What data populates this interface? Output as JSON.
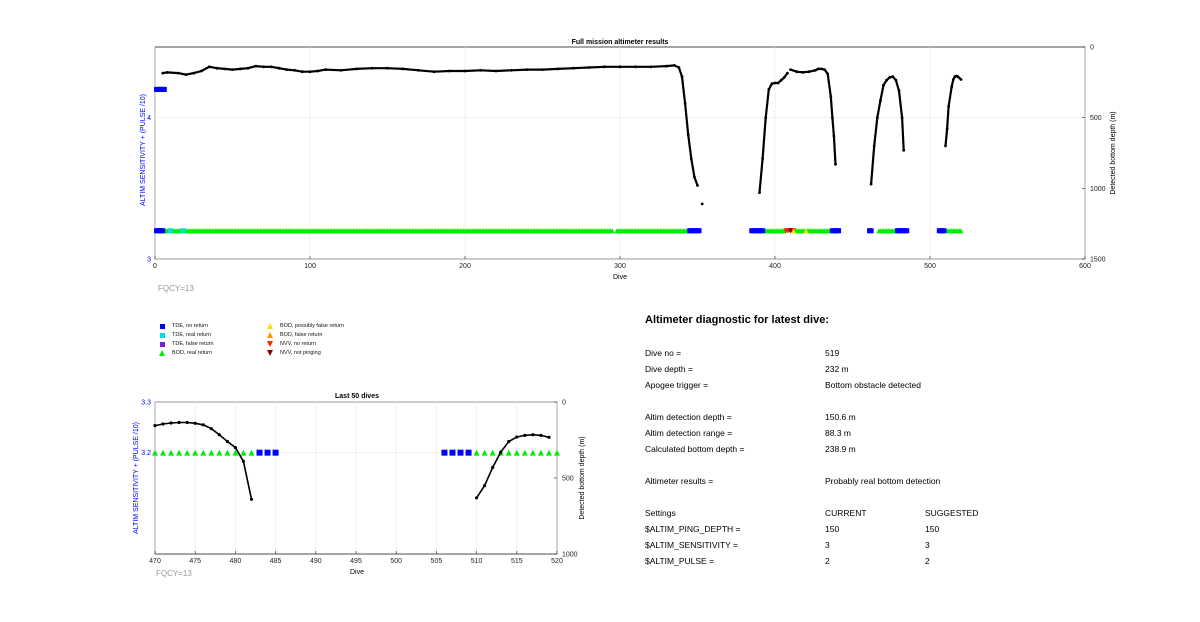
{
  "chart_data": [
    {
      "type": "scatter",
      "title": "Full mission altimeter results",
      "xlabel": "Dive",
      "ylabel": "ALTIM SENSITIVITY + (PULSE /10)",
      "y2label": "Detected bottom depth (m)",
      "xlim": [
        0,
        600
      ],
      "ylim": [
        3,
        4.5
      ],
      "y2lim": [
        0,
        1500
      ],
      "xticks": [
        "0",
        "100",
        "200",
        "300",
        "400",
        "500",
        "600"
      ],
      "yticks": [
        "3",
        "4"
      ],
      "y2ticks": [
        "0",
        "500",
        "1000",
        "1500"
      ],
      "grid": true,
      "annotation": "FQCY=13",
      "series": [
        {
          "name": "Detected bottom depth",
          "axis": "right",
          "segments": [
            [
              [
                5,
                185
              ],
              [
                8,
                180
              ],
              [
                15,
                185
              ],
              [
                20,
                195
              ],
              [
                25,
                185
              ],
              [
                30,
                170
              ],
              [
                35,
                140
              ],
              [
                40,
                150
              ],
              [
                45,
                155
              ],
              [
                50,
                160
              ],
              [
                55,
                155
              ],
              [
                60,
                150
              ],
              [
                65,
                135
              ],
              [
                70,
                140
              ],
              [
                75,
                140
              ],
              [
                80,
                150
              ],
              [
                85,
                160
              ],
              [
                90,
                165
              ],
              [
                95,
                175
              ],
              [
                100,
                175
              ],
              [
                105,
                170
              ],
              [
                110,
                160
              ],
              [
                120,
                165
              ],
              [
                130,
                155
              ],
              [
                140,
                150
              ],
              [
                150,
                150
              ],
              [
                160,
                155
              ],
              [
                170,
                165
              ],
              [
                180,
                175
              ],
              [
                190,
                170
              ],
              [
                200,
                170
              ],
              [
                210,
                165
              ],
              [
                220,
                170
              ],
              [
                230,
                165
              ],
              [
                240,
                160
              ],
              [
                250,
                160
              ],
              [
                260,
                155
              ],
              [
                270,
                150
              ],
              [
                280,
                145
              ],
              [
                290,
                140
              ],
              [
                300,
                140
              ],
              [
                310,
                140
              ],
              [
                320,
                140
              ],
              [
                330,
                135
              ],
              [
                335,
                130
              ],
              [
                338,
                145
              ],
              [
                340,
                210
              ],
              [
                342,
                400
              ],
              [
                344,
                620
              ],
              [
                346,
                790
              ],
              [
                348,
                920
              ],
              [
                350,
                980
              ]
            ],
            [
              [
                353,
                1110
              ]
            ],
            [
              [
                390,
                1030
              ],
              [
                392,
                790
              ],
              [
                394,
                500
              ],
              [
                396,
                300
              ],
              [
                398,
                260
              ],
              [
                400,
                255
              ],
              [
                402,
                255
              ],
              [
                404,
                235
              ],
              [
                406,
                215
              ],
              [
                408,
                185
              ]
            ],
            [
              [
                410,
                160
              ],
              [
                414,
                175
              ],
              [
                418,
                180
              ],
              [
                422,
                175
              ],
              [
                426,
                165
              ],
              [
                428,
                155
              ],
              [
                430,
                155
              ],
              [
                432,
                160
              ],
              [
                434,
                190
              ],
              [
                436,
                350
              ],
              [
                437,
                500
              ],
              [
                438,
                630
              ],
              [
                439,
                830
              ]
            ],
            [
              [
                462,
                970
              ],
              [
                464,
                700
              ],
              [
                466,
                500
              ],
              [
                468,
                380
              ],
              [
                470,
                270
              ],
              [
                472,
                235
              ],
              [
                474,
                215
              ],
              [
                476,
                210
              ],
              [
                478,
                235
              ],
              [
                480,
                310
              ],
              [
                482,
                500
              ],
              [
                483,
                730
              ]
            ],
            [
              [
                510,
                700
              ],
              [
                511,
                580
              ],
              [
                512,
                420
              ],
              [
                514,
                280
              ],
              [
                515,
                230
              ],
              [
                516,
                210
              ],
              [
                517,
                205
              ],
              [
                518,
                210
              ],
              [
                520,
                230
              ]
            ]
          ]
        },
        {
          "name": "BOD, real return",
          "axis": "left",
          "y": 3.2,
          "dives": [
            [
              6,
              8
            ],
            [
              11,
              17
            ],
            [
              20,
              295
            ],
            [
              298,
              344
            ],
            [
              394,
              406
            ],
            [
              413,
              436
            ],
            [
              467,
              478
            ],
            [
              511,
              520
            ]
          ]
        },
        {
          "name": "TDE, no return",
          "axis": "left",
          "y": 3.2,
          "dives": [
            1,
            2,
            3,
            4,
            5,
            345,
            346,
            347,
            348,
            349,
            350,
            351,
            385,
            386,
            387,
            388,
            389,
            390,
            391,
            392,
            437,
            438,
            439,
            440,
            441,
            461,
            462,
            479,
            480,
            481,
            482,
            483,
            484,
            485,
            506,
            507,
            508,
            509
          ]
        },
        {
          "name": "TDE, no return (offset)",
          "axis": "left",
          "y": 4.2,
          "dives": [
            1,
            2,
            3,
            4,
            5,
            6
          ]
        },
        {
          "name": "TDE, real return",
          "axis": "left",
          "y": 3.2,
          "dives": [
            10,
            18
          ]
        },
        {
          "name": "NVV, no return",
          "axis": "left",
          "y": 3.2,
          "dives": [
            407,
            408,
            409,
            410,
            411,
            412
          ]
        },
        {
          "name": "BOD, possibly false return",
          "axis": "left",
          "y": 3.2,
          "dives": [
            412,
            420
          ]
        },
        {
          "name": "NVV, not pinging",
          "axis": "left",
          "y": 3.2,
          "dives": [
            410
          ]
        }
      ]
    },
    {
      "type": "scatter",
      "title": "Last 50 dives",
      "xlabel": "Dive",
      "ylabel": "ALTIM SENSITIVITY + (PULSE /10)",
      "y2label": "Detected bottom depth (m)",
      "xlim": [
        470,
        520
      ],
      "ylim": [
        3.0,
        3.3
      ],
      "y2lim": [
        0,
        1000
      ],
      "xticks": [
        "470",
        "475",
        "480",
        "485",
        "490",
        "495",
        "500",
        "505",
        "510",
        "515",
        "520"
      ],
      "yticks": [
        "3.2",
        "3.3"
      ],
      "y2ticks": [
        "0",
        "500",
        "1000"
      ],
      "grid": true,
      "annotation": "FQCY=13",
      "series": [
        {
          "name": "Detected bottom depth",
          "axis": "right",
          "segments": [
            [
              [
                470,
                155
              ],
              [
                471,
                145
              ],
              [
                472,
                138
              ],
              [
                473,
                135
              ],
              [
                474,
                135
              ],
              [
                475,
                140
              ],
              [
                476,
                150
              ],
              [
                477,
                175
              ],
              [
                478,
                215
              ],
              [
                479,
                260
              ],
              [
                480,
                300
              ],
              [
                481,
                390
              ],
              [
                482,
                640
              ]
            ],
            [
              [
                510,
                630
              ],
              [
                511,
                550
              ],
              [
                512,
                430
              ],
              [
                513,
                330
              ],
              [
                514,
                260
              ],
              [
                515,
                230
              ],
              [
                516,
                220
              ],
              [
                517,
                215
              ],
              [
                518,
                220
              ],
              [
                519,
                232
              ]
            ]
          ]
        },
        {
          "name": "BOD, real return",
          "axis": "left",
          "y": 3.2,
          "dives": [
            470,
            471,
            472,
            473,
            474,
            475,
            476,
            477,
            478,
            479,
            480,
            481,
            482,
            510,
            511,
            512,
            513,
            514,
            515,
            516,
            517,
            518,
            519,
            520
          ]
        },
        {
          "name": "TDE, no return",
          "axis": "left",
          "y": 3.2,
          "dives": [
            483,
            484,
            485,
            506,
            507,
            508,
            509
          ]
        }
      ]
    }
  ],
  "legend": {
    "items": [
      {
        "label": "TDE, no return",
        "shape": "square",
        "color": "#0000ff"
      },
      {
        "label": "TDE, real return",
        "shape": "square",
        "color": "#00dddd"
      },
      {
        "label": "TDE, false return",
        "shape": "square",
        "color": "#7b1fd0"
      },
      {
        "label": "BOD, real return",
        "shape": "triangle-up",
        "color": "#00ee00"
      },
      {
        "label": "BOD, possibly false return",
        "shape": "triangle-up",
        "color": "#ffdd00"
      },
      {
        "label": "BOD, false return",
        "shape": "triangle-up",
        "color": "#ff9900"
      },
      {
        "label": "NVV, no return",
        "shape": "triangle-down",
        "color": "#ff2200"
      },
      {
        "label": "NVV, not pinging",
        "shape": "triangle-down",
        "color": "#8b0000"
      }
    ]
  },
  "diagnostic": {
    "title": "Altimeter diagnostic for latest dive:",
    "dive_no": {
      "label": "Dive no =",
      "value": "519"
    },
    "dive_depth": {
      "label": "Dive depth =",
      "value": "232 m"
    },
    "apogee": {
      "label": "Apogee trigger =",
      "value": "Bottom obstacle detected"
    },
    "detect_depth": {
      "label": "Altim detection depth =",
      "value": "150.6 m"
    },
    "detect_range": {
      "label": "Altim detection range =",
      "value": "88.3 m"
    },
    "calc_depth": {
      "label": "Calculated bottom depth =",
      "value": "238.9 m"
    },
    "results": {
      "label": "Altimeter results =",
      "value": "Probably real bottom detection"
    },
    "settings": {
      "label": "Settings",
      "current": "CURRENT",
      "suggested": "SUGGESTED"
    },
    "ping_depth": {
      "label": "$ALTIM_PING_DEPTH =",
      "current": "150",
      "suggested": "150"
    },
    "sensitivity": {
      "label": "$ALTIM_SENSITIVITY =",
      "current": "3",
      "suggested": "3"
    },
    "pulse": {
      "label": "$ALTIM_PULSE =",
      "current": "2",
      "suggested": "2"
    }
  },
  "colors": {
    "depth": "#000000",
    "left_axis": "#0000ff",
    "grid": "#e6e6e6",
    "annotation": "#999999"
  }
}
